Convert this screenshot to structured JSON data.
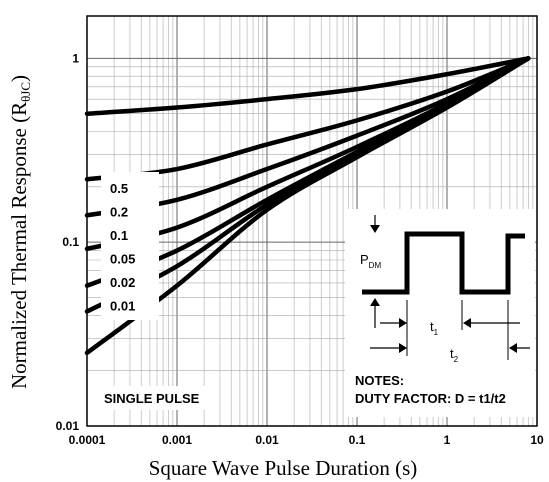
{
  "chart_data": {
    "type": "line",
    "xscale": "log",
    "yscale": "log",
    "xlim": [
      0.0001,
      10
    ],
    "ylim": [
      0.01,
      1.7
    ],
    "grid": true,
    "xlabel": "Square Wave Pulse Duration (s)",
    "ylabel": "Normalized Thermal Response (R",
    "ylabel_sub": "θJC",
    "ylabel_close": ")",
    "xtick_labels": [
      {
        "v": 0.0001,
        "t": "0.0001"
      },
      {
        "v": 0.001,
        "t": "0.001"
      },
      {
        "v": 0.01,
        "t": "0.01"
      },
      {
        "v": 0.1,
        "t": "0.1"
      },
      {
        "v": 1,
        "t": "1"
      },
      {
        "v": 10,
        "t": "10"
      }
    ],
    "ytick_labels": [
      {
        "v": 0.01,
        "t": "0.01"
      },
      {
        "v": 0.1,
        "t": "0.1"
      },
      {
        "v": 1,
        "t": "1"
      }
    ],
    "series": [
      {
        "name": "0.5",
        "x": [
          0.0001,
          0.001,
          0.01,
          0.1,
          1,
          8
        ],
        "y": [
          0.5,
          0.54,
          0.6,
          0.68,
          0.82,
          1.0
        ]
      },
      {
        "name": "0.2",
        "x": [
          0.0001,
          0.001,
          0.01,
          0.1,
          1,
          8
        ],
        "y": [
          0.22,
          0.25,
          0.34,
          0.46,
          0.66,
          1.0
        ]
      },
      {
        "name": "0.1",
        "x": [
          0.0001,
          0.001,
          0.01,
          0.1,
          1,
          8
        ],
        "y": [
          0.14,
          0.17,
          0.25,
          0.38,
          0.6,
          1.0
        ]
      },
      {
        "name": "0.05",
        "x": [
          0.0001,
          0.001,
          0.01,
          0.1,
          1,
          8
        ],
        "y": [
          0.092,
          0.12,
          0.2,
          0.33,
          0.57,
          1.0
        ]
      },
      {
        "name": "0.02",
        "x": [
          0.0001,
          0.001,
          0.01,
          0.1,
          1,
          8
        ],
        "y": [
          0.058,
          0.09,
          0.17,
          0.31,
          0.56,
          1.0
        ]
      },
      {
        "name": "0.01",
        "x": [
          0.0001,
          0.001,
          0.01,
          0.1,
          1,
          8
        ],
        "y": [
          0.042,
          0.074,
          0.16,
          0.3,
          0.55,
          1.0
        ]
      },
      {
        "name": "SINGLE PULSE",
        "x": [
          0.0001,
          0.001,
          0.01,
          0.1,
          1,
          8
        ],
        "y": [
          0.025,
          0.058,
          0.15,
          0.29,
          0.54,
          1.0
        ]
      }
    ],
    "curve_labels": [
      "0.5",
      "0.2",
      "0.1",
      "0.05",
      "0.02",
      "0.01"
    ],
    "single_pulse_label": "SINGLE PULSE",
    "inset": {
      "pdm": "P",
      "pdm_sub": "DM",
      "t1": "t",
      "t1_sub": "1",
      "t2": "t",
      "t2_sub": "2",
      "notes_title": "NOTES:",
      "notes_text": "DUTY FACTOR: D = t1/t2"
    }
  }
}
